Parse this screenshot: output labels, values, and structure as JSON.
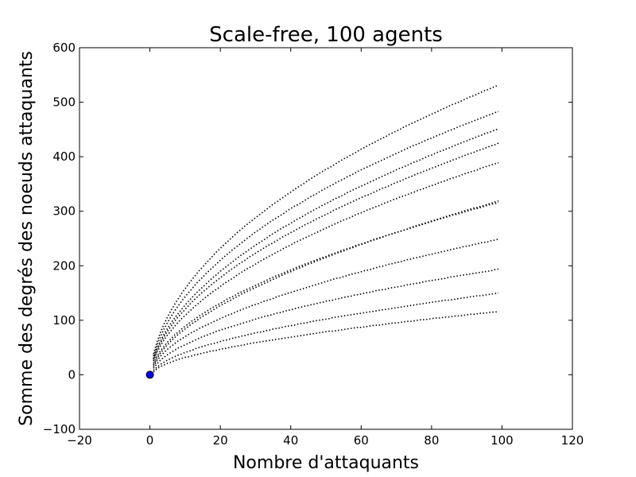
{
  "chart_data": {
    "type": "line",
    "title": "Scale-free, 100 agents",
    "xlabel": "Nombre d'attaquants",
    "ylabel": "Somme des degrés des noeuds attaquants",
    "xlim": [
      -20,
      120
    ],
    "ylim": [
      -100,
      600
    ],
    "xticks": [
      -20,
      0,
      20,
      40,
      60,
      80,
      100,
      120
    ],
    "xtick_labels": [
      "−20",
      "0",
      "20",
      "40",
      "60",
      "80",
      "100",
      "120"
    ],
    "yticks": [
      -100,
      0,
      100,
      200,
      300,
      400,
      500,
      600
    ],
    "ytick_labels": [
      "−100",
      "0",
      "100",
      "200",
      "300",
      "400",
      "500",
      "600"
    ],
    "grid": false,
    "line_style": "dotted",
    "line_color": "#000000",
    "start_point": {
      "x": 0,
      "y": 0,
      "color": "#0000ff"
    },
    "series_x_start": 1,
    "series_x_end": 99,
    "series": [
      {
        "values": [
          5,
          11,
          15,
          18,
          21,
          23,
          26,
          28,
          30,
          32,
          33,
          35,
          37,
          38,
          40,
          41,
          43,
          44,
          45,
          47,
          48,
          49,
          51,
          52,
          53,
          54,
          55,
          57,
          58,
          59,
          60,
          61,
          62,
          63,
          64,
          65,
          66,
          67,
          68,
          69,
          70,
          71,
          72,
          73,
          74,
          75,
          76,
          77,
          78,
          79,
          80,
          80,
          81,
          82,
          83,
          84,
          85,
          86,
          87,
          87,
          88,
          89,
          90,
          91,
          91,
          92,
          93,
          94,
          95,
          95,
          96,
          97,
          98,
          98,
          99,
          100,
          101,
          101,
          102,
          103,
          104,
          104,
          105,
          106,
          106,
          107,
          108,
          108,
          109,
          110,
          111,
          111,
          112,
          113,
          113,
          114,
          115,
          115,
          116
        ]
      },
      {
        "values": [
          15,
          26,
          34,
          41,
          47,
          52,
          57,
          62,
          66,
          70,
          74,
          78,
          81,
          85,
          88,
          91,
          94,
          97,
          100,
          103,
          106,
          109,
          111,
          114,
          117,
          119,
          122,
          124,
          127,
          129,
          131,
          134,
          136,
          138,
          140,
          143,
          145,
          147,
          149,
          151,
          153,
          155,
          157,
          159,
          161,
          163,
          165,
          167,
          169,
          171,
          173,
          175,
          177,
          178,
          180,
          182,
          184,
          186,
          187,
          189,
          191,
          192,
          194,
          196,
          198,
          199,
          201,
          203,
          204,
          206,
          207,
          209,
          211,
          212,
          214,
          215,
          217,
          218,
          220,
          221,
          223,
          224,
          226,
          227,
          229,
          230,
          232,
          233,
          235,
          236,
          237,
          239,
          240,
          242,
          243,
          244,
          246,
          247,
          249
        ]
      },
      {
        "values": [
          25,
          41,
          53,
          64,
          73,
          81,
          89,
          96,
          103,
          109,
          115,
          121,
          127,
          132,
          138,
          143,
          148,
          153,
          157,
          162,
          167,
          171,
          175,
          179,
          184,
          188,
          192,
          196,
          199,
          203,
          207,
          211,
          214,
          218,
          221,
          225,
          228,
          232,
          235,
          238,
          242,
          245,
          248,
          251,
          254,
          257,
          260,
          263,
          266,
          269,
          272,
          275,
          278,
          281,
          284,
          286,
          289,
          292,
          295,
          297,
          300,
          303,
          305,
          308,
          310,
          313,
          316,
          318,
          321,
          323,
          326,
          328,
          330,
          333,
          335,
          338,
          340,
          342,
          345,
          347,
          349,
          352,
          354,
          356,
          359,
          361,
          363,
          365,
          368,
          370,
          372,
          374,
          376,
          379,
          381,
          383,
          385,
          387,
          389
        ]
      },
      {
        "values": [
          30,
          48,
          62,
          74,
          85,
          95,
          104,
          112,
          120,
          128,
          135,
          142,
          149,
          155,
          161,
          167,
          173,
          179,
          184,
          190,
          195,
          200,
          205,
          210,
          215,
          220,
          224,
          229,
          233,
          238,
          242,
          246,
          250,
          255,
          259,
          263,
          267,
          271,
          274,
          278,
          282,
          286,
          289,
          293,
          297,
          300,
          304,
          307,
          311,
          314,
          317,
          321,
          324,
          327,
          330,
          334,
          337,
          340,
          343,
          346,
          349,
          352,
          355,
          358,
          361,
          364,
          367,
          370,
          373,
          376,
          379,
          381,
          384,
          387,
          390,
          392,
          395,
          398,
          401,
          403,
          406,
          409,
          411,
          414,
          416,
          419,
          422,
          424,
          427,
          429,
          432,
          434,
          437,
          439,
          442,
          444,
          446,
          449,
          451
        ]
      },
      {
        "values": [
          38,
          60,
          78,
          93,
          106,
          118,
          129,
          139,
          149,
          158,
          167,
          175,
          183,
          191,
          198,
          205,
          212,
          219,
          226,
          232,
          238,
          244,
          250,
          256,
          262,
          267,
          273,
          278,
          283,
          288,
          293,
          298,
          303,
          308,
          313,
          317,
          322,
          326,
          331,
          335,
          340,
          344,
          348,
          352,
          357,
          361,
          365,
          369,
          373,
          377,
          380,
          384,
          388,
          392,
          396,
          399,
          403,
          406,
          410,
          414,
          417,
          421,
          424,
          427,
          431,
          434,
          437,
          441,
          444,
          447,
          450,
          454,
          457,
          460,
          463,
          466,
          469,
          472,
          475,
          478,
          481,
          484,
          487,
          490,
          493,
          496,
          498,
          501,
          504,
          507,
          510,
          512,
          515,
          518,
          521,
          523,
          526,
          529,
          531
        ]
      },
      {
        "values": [
          21,
          34,
          44,
          52,
          60,
          66,
          73,
          78,
          84,
          89,
          94,
          99,
          103,
          108,
          112,
          116,
          120,
          124,
          128,
          131,
          135,
          139,
          142,
          145,
          149,
          152,
          155,
          158,
          161,
          164,
          167,
          170,
          173,
          176,
          179,
          182,
          184,
          187,
          190,
          192,
          195,
          198,
          200,
          203,
          205,
          208,
          210,
          213,
          215,
          217,
          220,
          222,
          224,
          227,
          229,
          231,
          233,
          236,
          238,
          240,
          242,
          244,
          247,
          249,
          251,
          253,
          255,
          257,
          259,
          261,
          263,
          265,
          267,
          269,
          271,
          273,
          275,
          277,
          279,
          281,
          283,
          285,
          287,
          289,
          291,
          293,
          294,
          296,
          298,
          300,
          302,
          304,
          305,
          307,
          309,
          311,
          313,
          314,
          316
        ]
      },
      {
        "values": [
          12,
          20,
          27,
          32,
          37,
          41,
          45,
          49,
          52,
          55,
          58,
          61,
          64,
          67,
          70,
          72,
          75,
          77,
          80,
          82,
          84,
          86,
          88,
          90,
          92,
          94,
          96,
          98,
          100,
          102,
          104,
          106,
          108,
          109,
          111,
          113,
          114,
          116,
          118,
          119,
          121,
          123,
          124,
          126,
          127,
          129,
          130,
          132,
          133,
          135,
          136,
          137,
          139,
          140,
          142,
          143,
          144,
          146,
          147,
          148,
          150,
          151,
          152,
          154,
          155,
          156,
          157,
          159,
          160,
          161,
          162,
          163,
          165,
          166,
          167,
          168,
          169,
          171,
          172,
          173,
          174,
          175,
          176,
          177,
          179,
          180,
          181,
          182,
          183,
          184,
          185,
          186,
          187,
          188,
          189,
          190,
          191,
          193,
          194
        ]
      },
      {
        "values": [
          34,
          54,
          70,
          84,
          96,
          107,
          117,
          126,
          135,
          143,
          151,
          158,
          166,
          173,
          179,
          186,
          192,
          198,
          204,
          210,
          216,
          221,
          227,
          232,
          237,
          242,
          247,
          252,
          257,
          262,
          266,
          271,
          275,
          280,
          284,
          288,
          292,
          296,
          301,
          305,
          309,
          312,
          316,
          320,
          324,
          328,
          331,
          335,
          339,
          342,
          346,
          349,
          353,
          356,
          359,
          363,
          366,
          369,
          373,
          376,
          379,
          382,
          385,
          388,
          391,
          394,
          397,
          400,
          403,
          406,
          409,
          412,
          415,
          418,
          421,
          423,
          426,
          429,
          432,
          434,
          437,
          440,
          442,
          445,
          448,
          450,
          453,
          456,
          458,
          461,
          463,
          466,
          468,
          471,
          473,
          476,
          478,
          481,
          483
        ]
      },
      {
        "values": [
          18,
          30,
          40,
          48,
          55,
          62,
          68,
          74,
          79,
          84,
          89,
          94,
          98,
          103,
          107,
          111,
          115,
          119,
          123,
          127,
          130,
          134,
          137,
          141,
          144,
          148,
          151,
          154,
          157,
          160,
          163,
          166,
          169,
          172,
          175,
          178,
          181,
          184,
          187,
          189,
          192,
          195,
          197,
          200,
          203,
          205,
          208,
          210,
          213,
          215,
          218,
          220,
          223,
          225,
          227,
          230,
          232,
          234,
          237,
          239,
          241,
          244,
          246,
          248,
          250,
          252,
          255,
          257,
          259,
          261,
          263,
          265,
          267,
          270,
          272,
          274,
          276,
          278,
          280,
          282,
          284,
          286,
          288,
          290,
          292,
          294,
          296,
          298,
          300,
          302,
          304,
          306,
          307,
          309,
          311,
          313,
          315,
          317,
          319
        ]
      },
      {
        "values": [
          28,
          45,
          58,
          70,
          80,
          89,
          98,
          106,
          113,
          120,
          127,
          134,
          140,
          146,
          152,
          157,
          163,
          168,
          173,
          178,
          183,
          188,
          193,
          197,
          202,
          206,
          210,
          215,
          219,
          223,
          227,
          231,
          235,
          239,
          242,
          246,
          250,
          254,
          257,
          261,
          264,
          268,
          271,
          275,
          278,
          281,
          285,
          288,
          291,
          294,
          297,
          301,
          304,
          307,
          310,
          313,
          316,
          319,
          322,
          325,
          328,
          330,
          333,
          336,
          339,
          342,
          344,
          347,
          350,
          353,
          355,
          358,
          361,
          363,
          366,
          369,
          371,
          374,
          376,
          379,
          381,
          384,
          386,
          389,
          391,
          394,
          396,
          399,
          401,
          404,
          406,
          408,
          411,
          413,
          415,
          418,
          420,
          422,
          425
        ]
      },
      {
        "values": [
          8,
          14,
          19,
          23,
          27,
          30,
          33,
          36,
          38,
          41,
          43,
          45,
          48,
          50,
          52,
          54,
          56,
          57,
          59,
          61,
          63,
          64,
          66,
          68,
          69,
          71,
          72,
          74,
          75,
          77,
          78,
          79,
          81,
          82,
          84,
          85,
          86,
          88,
          89,
          90,
          91,
          93,
          94,
          95,
          96,
          98,
          99,
          100,
          101,
          102,
          103,
          105,
          106,
          107,
          108,
          109,
          110,
          111,
          112,
          113,
          114,
          115,
          116,
          117,
          118,
          119,
          120,
          121,
          122,
          123,
          124,
          125,
          126,
          127,
          128,
          129,
          130,
          131,
          132,
          133,
          134,
          135,
          136,
          137,
          137,
          138,
          139,
          140,
          141,
          142,
          143,
          144,
          145,
          145,
          146,
          147,
          148,
          149,
          150
        ]
      }
    ]
  }
}
